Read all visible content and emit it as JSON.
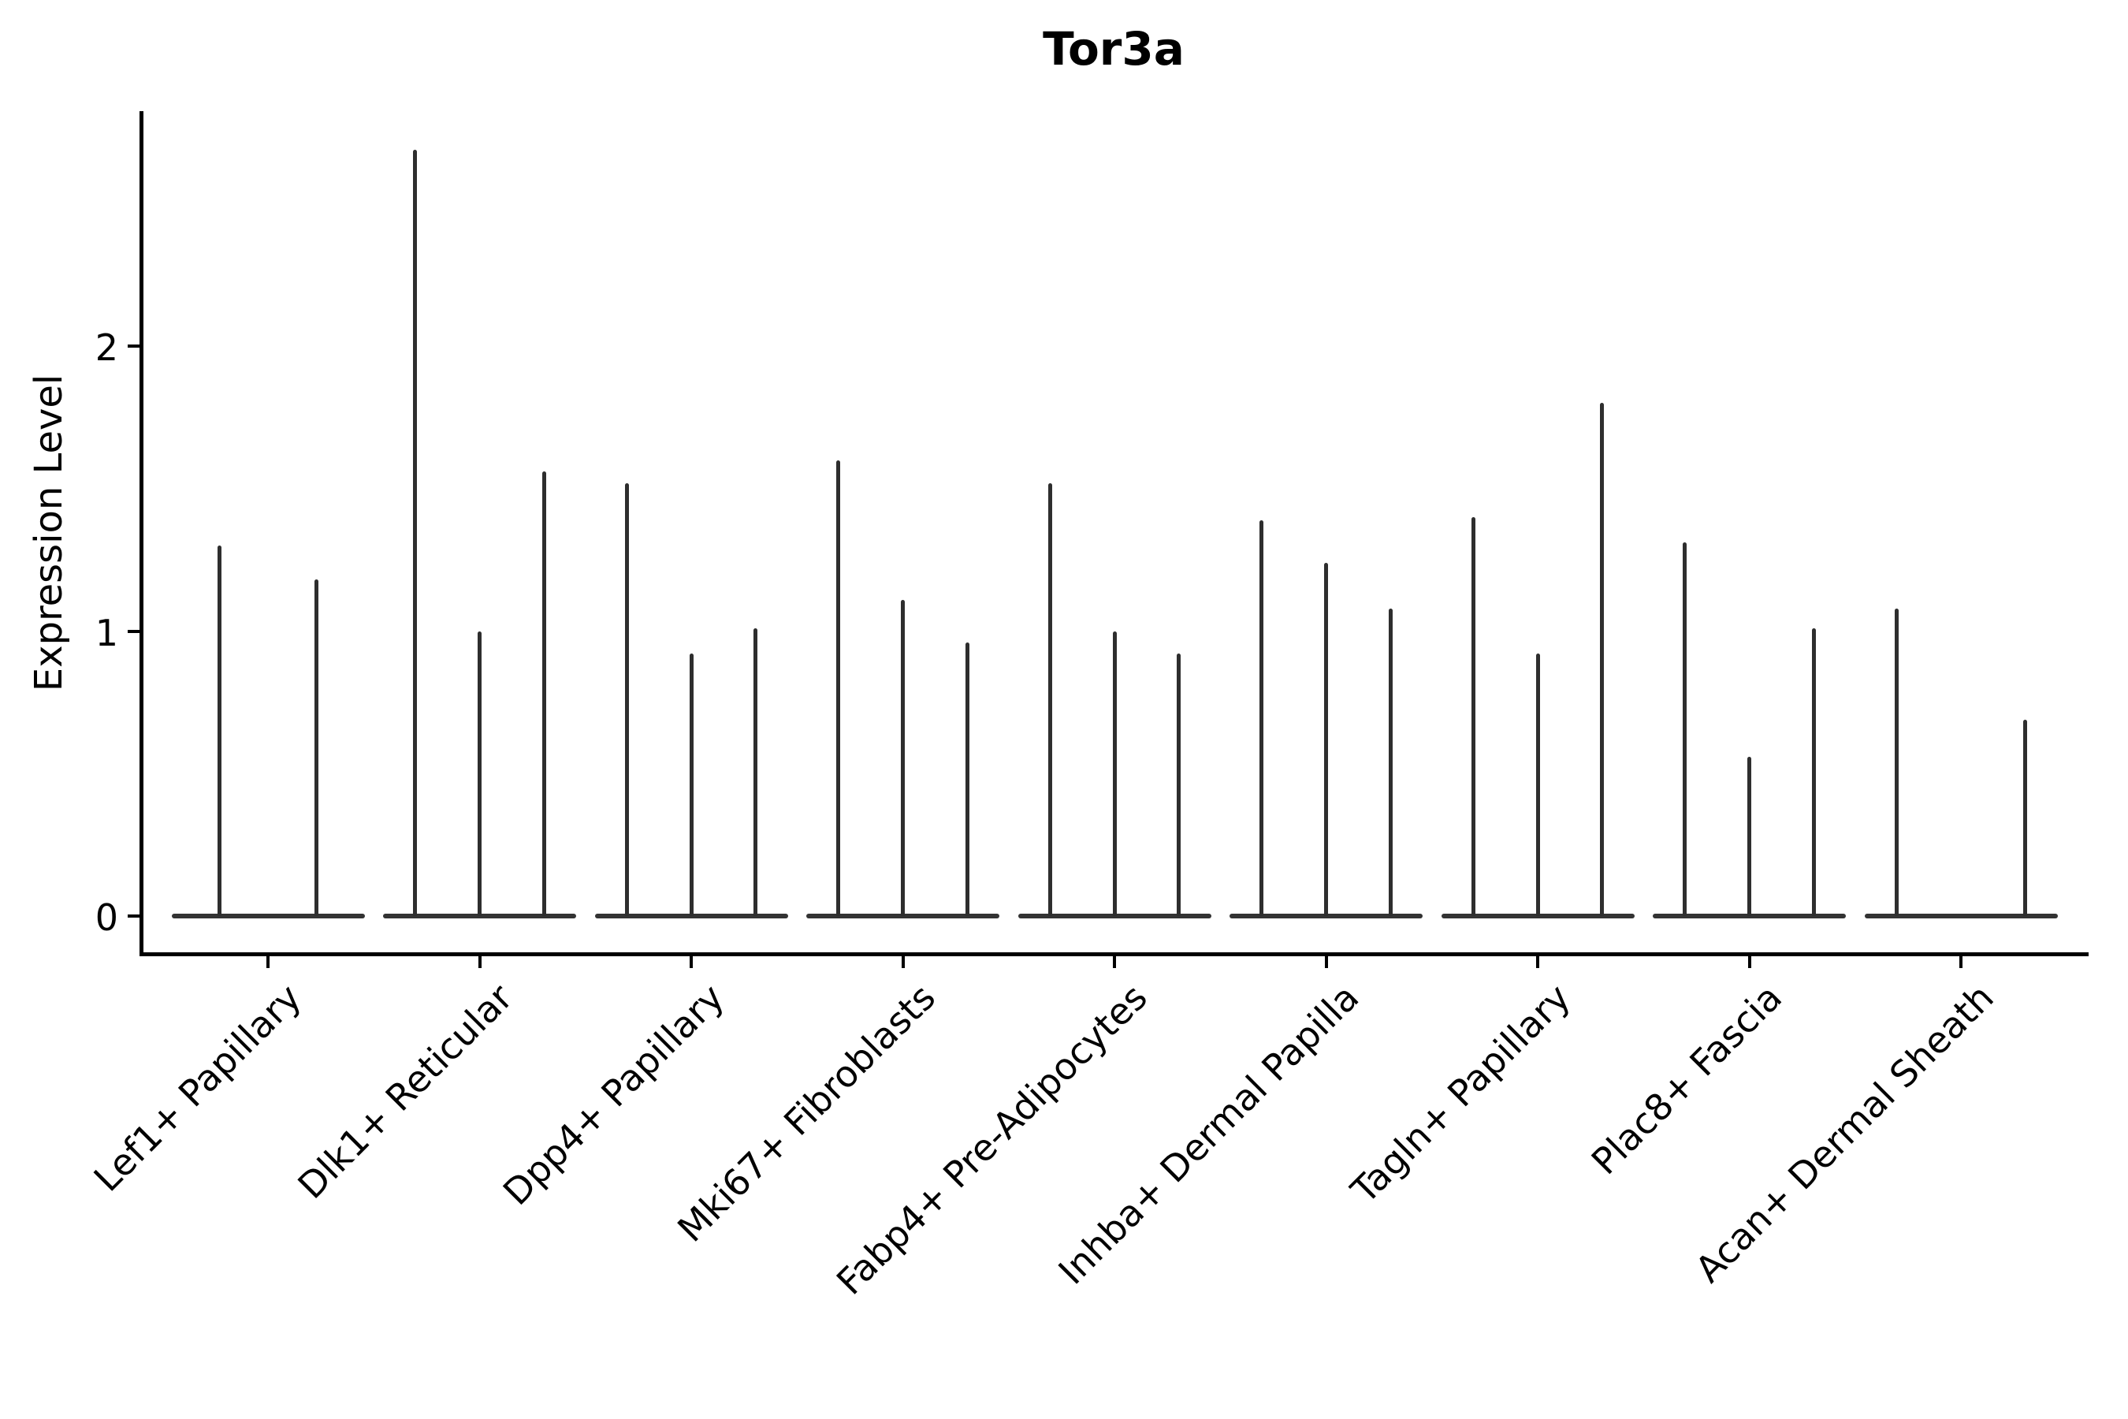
{
  "title": "Tor3a",
  "chart_data": {
    "type": "violin",
    "title": "Tor3a",
    "xlabel": "",
    "ylabel": "Expression Level",
    "yticks": [
      0,
      1,
      2
    ],
    "ylim": [
      -0.13,
      2.82
    ],
    "grid": false,
    "legend": "none",
    "description": "Seurat-style violin plot of Tor3a expression; each category shows 2-3 ultra-thin violins (spikes) rising from a flat baseline at 0",
    "categories": [
      "Lef1+ Papillary",
      "Dlk1+ Reticular",
      "Dpp4+ Papillary",
      "Mki67+ Fibroblasts",
      "Fabp4+ Pre-Adipocytes",
      "Inhba+ Dermal Papilla",
      "Tagln+ Papillary",
      "Plac8+ Fascia",
      "Acan+ Dermal Sheath"
    ],
    "groups": [
      {
        "category": "Lef1+ Papillary",
        "spike_heights": [
          1.3,
          1.18
        ]
      },
      {
        "category": "Dlk1+ Reticular",
        "spike_heights": [
          2.69,
          1.0,
          1.56
        ]
      },
      {
        "category": "Dpp4+ Papillary",
        "spike_heights": [
          1.52,
          0.92,
          1.01
        ]
      },
      {
        "category": "Mki67+ Fibroblasts",
        "spike_heights": [
          1.6,
          1.11,
          0.96
        ]
      },
      {
        "category": "Fabp4+ Pre-Adipocytes",
        "spike_heights": [
          1.52,
          1.0,
          0.92
        ]
      },
      {
        "category": "Inhba+ Dermal Papilla",
        "spike_heights": [
          1.39,
          1.24,
          1.08
        ]
      },
      {
        "category": "Tagln+ Papillary",
        "spike_heights": [
          1.4,
          0.92,
          1.8
        ]
      },
      {
        "category": "Plac8+ Fascia",
        "spike_heights": [
          1.31,
          0.56,
          1.01
        ]
      },
      {
        "category": "Acan+ Dermal Sheath",
        "spike_heights": [
          1.08,
          0,
          0.69
        ]
      }
    ],
    "colors": {
      "violin": "#2e2e2e",
      "baseline": "#333333",
      "axis": "#000000",
      "background": "#ffffff",
      "text": "#000000"
    }
  }
}
